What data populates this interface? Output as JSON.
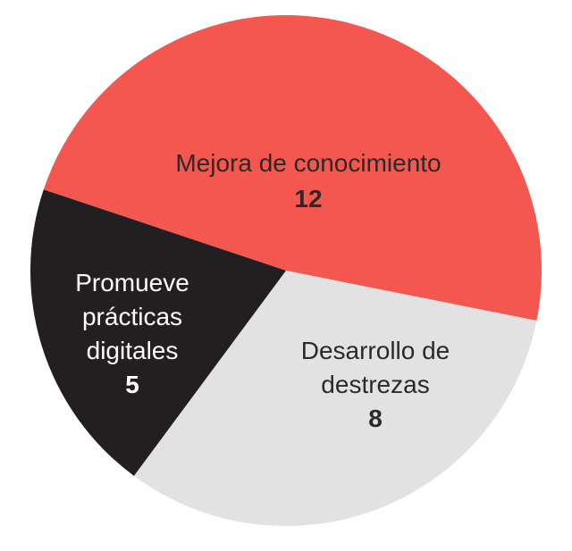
{
  "chart_data": {
    "type": "pie",
    "slices": [
      {
        "label_lines": [
          "Mejora de conocimiento"
        ],
        "value": 12,
        "value_text": "12",
        "color": "#F4574F",
        "text_color": "#2a2a2a"
      },
      {
        "label_lines": [
          "Desarrollo de",
          "destrezas"
        ],
        "value": 8,
        "value_text": "8",
        "color": "#E2E2E2",
        "text_color": "#2a2a2a"
      },
      {
        "label_lines": [
          "Promueve",
          "prácticas",
          "digitales"
        ],
        "value": 5,
        "value_text": "5",
        "color": "#231F20",
        "text_color": "#ffffff"
      }
    ],
    "start_angle_deg": -161.5,
    "direction": "clockwise",
    "title": "",
    "legend": "none"
  }
}
